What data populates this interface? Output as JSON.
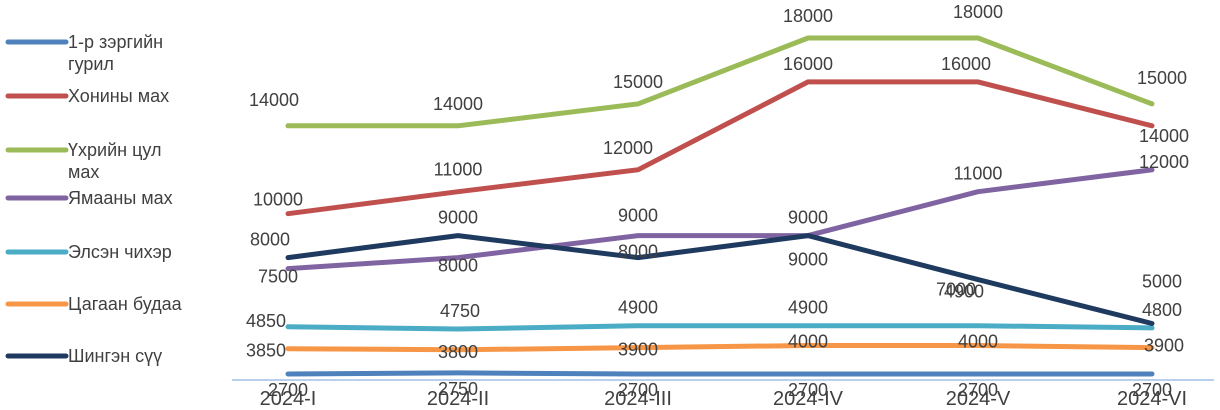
{
  "chart_data": {
    "type": "line",
    "categories": [
      "2024-I",
      "2024-II",
      "2024-III",
      "2024-IV",
      "2024-V",
      "2024-VI"
    ],
    "series": [
      {
        "name": "1-р зэргийн гурил",
        "color": "#4f81bd",
        "values": [
          2700,
          2750,
          2700,
          2700,
          2700,
          2700
        ]
      },
      {
        "name": "Хонины мах",
        "color": "#c0504d",
        "values": [
          10000,
          11000,
          12000,
          16000,
          16000,
          14000
        ]
      },
      {
        "name": "Үхрийн цул мах",
        "color": "#9bbb59",
        "values": [
          14000,
          14000,
          15000,
          18000,
          18000,
          15000
        ]
      },
      {
        "name": "Ямааны мах",
        "color": "#8064a2",
        "values": [
          7500,
          8000,
          9000,
          9000,
          11000,
          12000
        ]
      },
      {
        "name": "Элсэн чихэр",
        "color": "#4bacc6",
        "values": [
          4850,
          4750,
          4900,
          4900,
          4900,
          4800
        ]
      },
      {
        "name": "Цагаан будаа",
        "color": "#f79646",
        "values": [
          3850,
          3800,
          3900,
          4000,
          4000,
          3900
        ]
      },
      {
        "name": "Шингэн сүү",
        "color": "#1f3a5f",
        "values": [
          8000,
          9000,
          8000,
          9000,
          7000,
          5000
        ]
      }
    ],
    "legend": "left",
    "grid": false
  }
}
